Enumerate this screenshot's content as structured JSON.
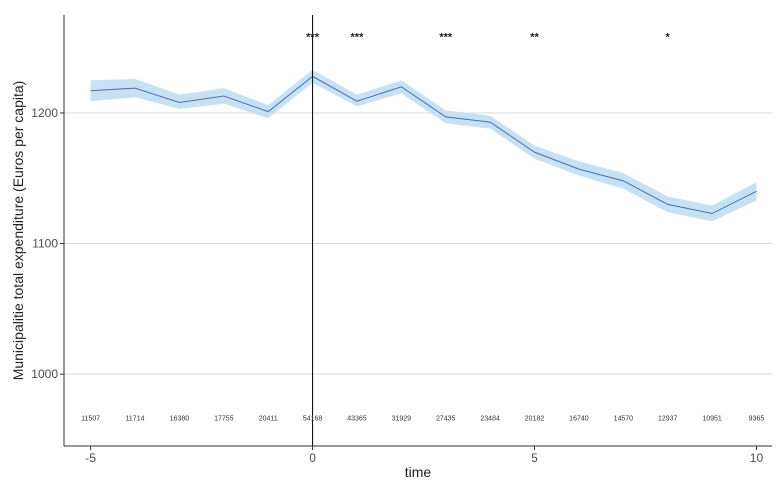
{
  "chart_data": {
    "type": "line",
    "xlabel": "time",
    "ylabel": "Municipalitie total expenditure (Euros per capita)",
    "xlim": [
      -5.6,
      10.35
    ],
    "ylim": [
      945,
      1275
    ],
    "x_ticks": [
      -5,
      0,
      5,
      10
    ],
    "y_ticks": [
      1000,
      1100,
      1200
    ],
    "grid": "horizontal-major",
    "vline_x": 0,
    "colors": {
      "line": "#4a6fb5",
      "band": "#c6e2f2",
      "vline": "#000000",
      "grid": "#d9d9d9"
    },
    "series": [
      {
        "x": [
          -5,
          -4,
          -3,
          -2,
          -1,
          0,
          1,
          2,
          3,
          4,
          5,
          6,
          7,
          8,
          9,
          10
        ],
        "y": [
          1217,
          1219,
          1208,
          1213,
          1201,
          1228,
          1209,
          1220,
          1197,
          1193,
          1170,
          1157,
          1148,
          1130,
          1123,
          1140
        ],
        "lower": [
          1209,
          1212,
          1203,
          1207,
          1196,
          1223,
          1205,
          1215,
          1192,
          1188,
          1165,
          1152,
          1142,
          1124,
          1117,
          1133
        ],
        "upper": [
          1225,
          1226,
          1214,
          1219,
          1206,
          1233,
          1214,
          1225,
          1202,
          1198,
          1175,
          1163,
          1154,
          1136,
          1129,
          1147
        ]
      }
    ],
    "annotations": [
      {
        "x": 0,
        "text": "***"
      },
      {
        "x": 1,
        "text": "***"
      },
      {
        "x": 3,
        "text": "***"
      },
      {
        "x": 5,
        "text": "**"
      },
      {
        "x": 8,
        "text": "*"
      }
    ],
    "annotation_y": 1260,
    "counts_y": 967,
    "counts": [
      "11507",
      "11714",
      "16380",
      "17755",
      "20411",
      "54168",
      "43365",
      "31929",
      "27435",
      "23484",
      "20182",
      "16740",
      "14570",
      "12937",
      "10951",
      "9365"
    ]
  }
}
